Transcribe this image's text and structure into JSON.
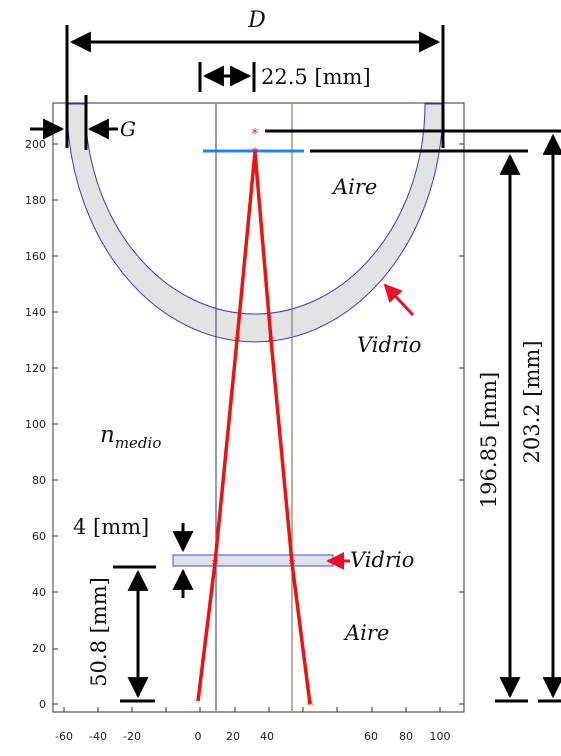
{
  "x_ticks": [
    "-60",
    "-40",
    "-20",
    "0",
    "20",
    "40",
    "60",
    "80",
    "100"
  ],
  "y_ticks": [
    "0",
    "20",
    "40",
    "60",
    "80",
    "100",
    "120",
    "140",
    "160",
    "180",
    "200"
  ],
  "labels": {
    "D": "D",
    "G": "G",
    "offset": "22.5 [mm]",
    "aire_top": "Aire",
    "vidrio_dome": "Vidrio",
    "n_base": "n",
    "n_sub": "medio",
    "thickness": "4 [mm]",
    "vidrio_plate": "Vidrio",
    "aire_bottom": "Aire",
    "height_plate": "50.8 [mm]",
    "height_focus": "196.85 [mm]",
    "height_total": "203.2 [mm]"
  },
  "colors": {
    "glass_fill": "#e3e3e3",
    "dome_outline": "#3a3acc",
    "ray": "#ee1111",
    "focal_plane": "#1e88e5",
    "axis_box": "#333333",
    "vline_left": "#4a5a8a",
    "vline_right": "#8a7a5a"
  }
}
